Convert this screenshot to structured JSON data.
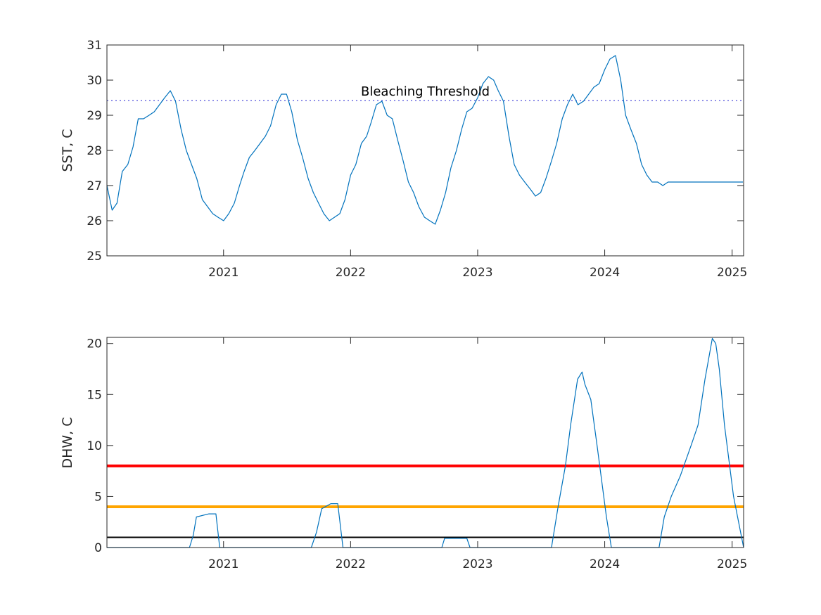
{
  "chart_data": [
    {
      "type": "line",
      "title": "",
      "xlabel": "",
      "ylabel": "SST, C",
      "xlim": [
        "2020-02-01",
        "2025-02-03"
      ],
      "ylim": [
        25,
        31
      ],
      "grid": false,
      "x_ticks": [
        "2021",
        "2022",
        "2023",
        "2024",
        "2025"
      ],
      "x_tick_dates": [
        "2021-01-01",
        "2022-01-01",
        "2023-01-01",
        "2024-01-01",
        "2025-01-01"
      ],
      "y_ticks": [
        "25",
        "26",
        "27",
        "28",
        "29",
        "30",
        "31"
      ],
      "series": [
        {
          "color": "#0072BD",
          "x": [
            "2020-02-01",
            "2020-02-16",
            "2020-03-01",
            "2020-03-16",
            "2020-04-01",
            "2020-04-16",
            "2020-05-01",
            "2020-05-16",
            "2020-06-01",
            "2020-06-16",
            "2020-07-01",
            "2020-07-16",
            "2020-08-01",
            "2020-08-16",
            "2020-09-01",
            "2020-09-16",
            "2020-10-01",
            "2020-10-16",
            "2020-11-01",
            "2020-11-16",
            "2020-12-01",
            "2020-12-16",
            "2021-01-01",
            "2021-01-16",
            "2021-02-01",
            "2021-02-16",
            "2021-03-01",
            "2021-03-16",
            "2021-04-01",
            "2021-04-16",
            "2021-05-01",
            "2021-05-16",
            "2021-06-01",
            "2021-06-16",
            "2021-07-01",
            "2021-07-16",
            "2021-08-01",
            "2021-08-16",
            "2021-09-01",
            "2021-09-16",
            "2021-10-01",
            "2021-10-16",
            "2021-11-01",
            "2021-11-16",
            "2021-12-01",
            "2021-12-16",
            "2022-01-01",
            "2022-01-16",
            "2022-02-01",
            "2022-02-16",
            "2022-03-01",
            "2022-03-16",
            "2022-04-01",
            "2022-04-16",
            "2022-05-01",
            "2022-05-16",
            "2022-06-01",
            "2022-06-16",
            "2022-07-01",
            "2022-07-16",
            "2022-08-01",
            "2022-08-16",
            "2022-09-01",
            "2022-09-16",
            "2022-10-01",
            "2022-10-16",
            "2022-11-01",
            "2022-11-16",
            "2022-12-01",
            "2022-12-16",
            "2023-01-01",
            "2023-01-16",
            "2023-02-01",
            "2023-02-16",
            "2023-03-01",
            "2023-03-16",
            "2023-04-01",
            "2023-04-16",
            "2023-05-01",
            "2023-05-16",
            "2023-06-01",
            "2023-06-16",
            "2023-07-01",
            "2023-07-16",
            "2023-08-01",
            "2023-08-16",
            "2023-09-01",
            "2023-09-16",
            "2023-10-01",
            "2023-10-16",
            "2023-11-01",
            "2023-11-16",
            "2023-12-01",
            "2023-12-16",
            "2024-01-01",
            "2024-01-16",
            "2024-02-01",
            "2024-02-16",
            "2024-03-01",
            "2024-03-16",
            "2024-04-01",
            "2024-04-16",
            "2024-05-01",
            "2024-05-16",
            "2024-06-01",
            "2024-06-16",
            "2024-07-01",
            "2024-07-16",
            "2024-08-01",
            "2024-08-16",
            "2024-09-01",
            "2024-09-16",
            "2024-10-01",
            "2024-10-16",
            "2024-11-01",
            "2024-11-16",
            "2024-12-01",
            "2024-12-16",
            "2025-01-01",
            "2025-01-16",
            "2025-02-01"
          ],
          "y": [
            27.0,
            26.3,
            26.5,
            27.4,
            27.6,
            28.1,
            28.9,
            28.9,
            29.0,
            29.1,
            29.3,
            29.5,
            29.7,
            29.4,
            28.6,
            28.0,
            27.6,
            27.2,
            26.6,
            26.4,
            26.2,
            26.1,
            26.0,
            26.2,
            26.5,
            27.0,
            27.4,
            27.8,
            28.0,
            28.2,
            28.4,
            28.7,
            29.3,
            29.6,
            29.6,
            29.1,
            28.3,
            27.8,
            27.2,
            26.8,
            26.5,
            26.2,
            26.0,
            26.1,
            26.2,
            26.6,
            27.3,
            27.6,
            28.2,
            28.4,
            28.8,
            29.3,
            29.4,
            29.0,
            28.9,
            28.3,
            27.7,
            27.1,
            26.8,
            26.4,
            26.1,
            26.0,
            25.9,
            26.3,
            26.8,
            27.5,
            28.0,
            28.6,
            29.1,
            29.2,
            29.5,
            29.9,
            30.1,
            30.0,
            29.7,
            29.4,
            28.4,
            27.6,
            27.3,
            27.1,
            26.9,
            26.7,
            26.8,
            27.2,
            27.7,
            28.2,
            28.9,
            29.3,
            29.6,
            29.3,
            29.4,
            29.6,
            29.8,
            29.9,
            30.3,
            30.6,
            30.7,
            30.0,
            29.0,
            28.6,
            28.2,
            27.6,
            27.3,
            27.1,
            27.1,
            27.0,
            27.1,
            27.1,
            27.1,
            27.1,
            27.1,
            27.1,
            27.1,
            27.1,
            27.1,
            27.1,
            27.1,
            27.1,
            27.1,
            27.1,
            27.1
          ]
        }
      ],
      "threshold": {
        "y": 29.42,
        "color": "#6B6BE0",
        "style": "dotted"
      },
      "annotation": "Bleaching Threshold"
    },
    {
      "type": "line",
      "title": "",
      "xlabel": "",
      "ylabel": "DHW, C",
      "xlim": [
        "2020-02-01",
        "2025-02-03"
      ],
      "ylim": [
        0,
        20.6
      ],
      "grid": false,
      "x_ticks": [
        "2021",
        "2022",
        "2023",
        "2024",
        "2025"
      ],
      "x_tick_dates": [
        "2021-01-01",
        "2022-01-01",
        "2023-01-01",
        "2024-01-01",
        "2025-01-01"
      ],
      "y_ticks": [
        "0",
        "5",
        "10",
        "15",
        "20"
      ],
      "series": [
        {
          "color": "#0072BD",
          "x": [
            "2020-02-01",
            "2020-09-25",
            "2020-10-06",
            "2020-10-15",
            "2020-11-20",
            "2020-12-10",
            "2020-12-21",
            "2021-09-10",
            "2021-09-25",
            "2021-10-10",
            "2021-11-05",
            "2021-11-25",
            "2021-12-10",
            "2022-01-10",
            "2022-09-20",
            "2022-09-28",
            "2022-11-10",
            "2022-12-01",
            "2022-12-10",
            "2023-08-01",
            "2023-08-20",
            "2023-09-10",
            "2023-09-25",
            "2023-10-15",
            "2023-10-28",
            "2023-11-05",
            "2023-11-22",
            "2023-12-10",
            "2024-01-06",
            "2024-01-20",
            "2024-02-05",
            "2024-06-05",
            "2024-06-20",
            "2024-07-10",
            "2024-08-05",
            "2024-09-05",
            "2024-09-25",
            "2024-10-15",
            "2024-11-05",
            "2024-11-15",
            "2024-11-25",
            "2024-12-10",
            "2025-01-05",
            "2025-02-03"
          ],
          "y": [
            0,
            0,
            1.2,
            3.0,
            3.3,
            3.3,
            0,
            0,
            1.5,
            3.8,
            4.3,
            4.3,
            0,
            0,
            0,
            0.9,
            0.9,
            0.9,
            0,
            0,
            4.0,
            8.0,
            12.0,
            16.5,
            17.2,
            16.0,
            14.5,
            10.0,
            3.0,
            0,
            0,
            0,
            3.0,
            5.0,
            7.0,
            10.0,
            12.0,
            16.5,
            20.5,
            20.0,
            17.5,
            12.0,
            5.0,
            0
          ]
        }
      ],
      "thresholds": [
        {
          "y": 8,
          "color": "#FF0000"
        },
        {
          "y": 4,
          "color": "#FFA500"
        },
        {
          "y": 1,
          "color": "#000000"
        }
      ]
    }
  ]
}
